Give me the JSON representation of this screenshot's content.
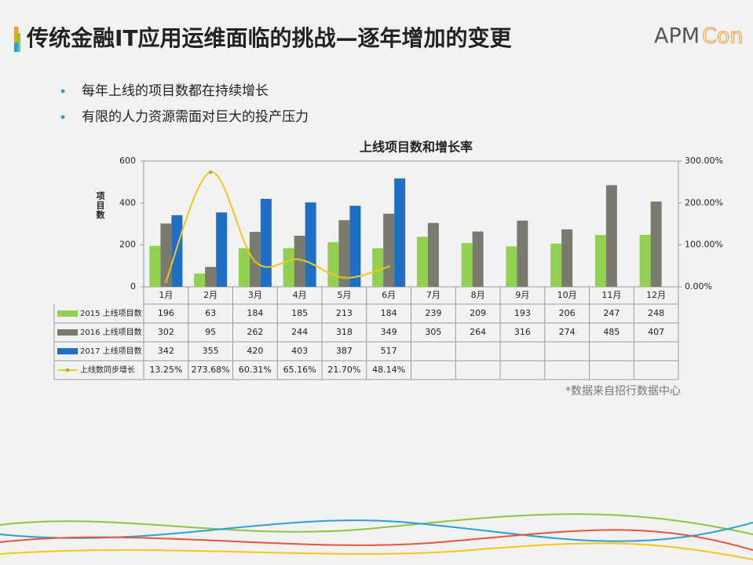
{
  "slide_title": "传统金融IT应用运维面临的挑战—逐年增加的变更",
  "logo": {
    "left": "APM",
    "right": "Con"
  },
  "bullets": [
    "每年上线的项目数都在持续增长",
    "有限的人力资源需面对巨大的投产压力"
  ],
  "source_note": "*数据来自招行数据中心",
  "chart_data": {
    "type": "bar",
    "title": "上线项目数和增长率",
    "y_label": "项目数",
    "categories": [
      "1月",
      "2月",
      "3月",
      "4月",
      "5月",
      "6月",
      "7月",
      "8月",
      "9月",
      "10月",
      "11月",
      "12月"
    ],
    "series": [
      {
        "name": "2015 上线项目数",
        "color": "#92d050",
        "values": [
          196,
          63,
          184,
          185,
          213,
          184,
          239,
          209,
          193,
          206,
          247,
          248
        ]
      },
      {
        "name": "2016 上线项目数",
        "color": "#7a7b6e",
        "values": [
          302,
          95,
          262,
          244,
          318,
          349,
          305,
          264,
          316,
          274,
          485,
          407
        ]
      },
      {
        "name": "2017 上线项目数",
        "color": "#1f6fc5",
        "values": [
          342,
          355,
          420,
          403,
          387,
          517,
          null,
          null,
          null,
          null,
          null,
          null
        ]
      },
      {
        "name": "上线数同步增长",
        "color": "#f5c518",
        "type": "line",
        "axis": "y2",
        "values": [
          13.25,
          273.68,
          60.31,
          65.16,
          21.7,
          48.14,
          null,
          null,
          null,
          null,
          null,
          null
        ],
        "value_labels": [
          "13.25%",
          "273.68%",
          "60.31%",
          "65.16%",
          "21.70%",
          "48.14%",
          null,
          null,
          null,
          null,
          null,
          null
        ]
      }
    ],
    "ylim": [
      0,
      600
    ],
    "yticks": [
      0,
      200,
      400,
      600
    ],
    "y2lim": [
      0,
      300
    ],
    "y2ticks": [
      {
        "value": 0,
        "label": "0.00%"
      },
      {
        "value": 100,
        "label": "100.00%"
      },
      {
        "value": 200,
        "label": "200.00%"
      },
      {
        "value": 300,
        "label": "300.00%"
      }
    ],
    "grid": false
  }
}
